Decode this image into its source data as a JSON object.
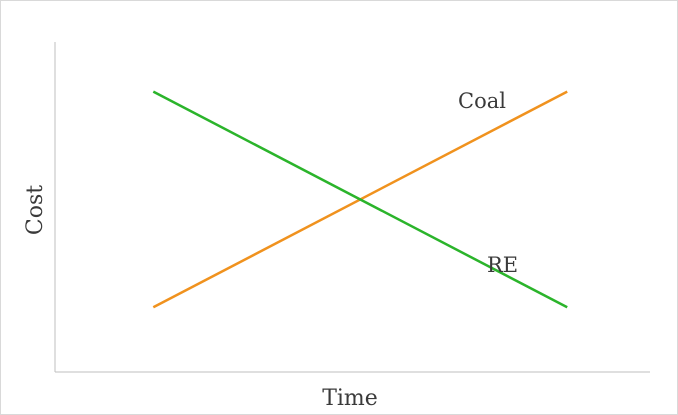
{
  "chart_data": {
    "type": "line",
    "title": "",
    "xlabel": "Time",
    "ylabel": "Cost",
    "x": [
      0,
      1
    ],
    "xlim": [
      -0.2375,
      1.2
    ],
    "ylim": [
      -0.3,
      1.23
    ],
    "grid": false,
    "legend": "none",
    "series": [
      {
        "name": "Coal",
        "color": "#f0921e",
        "values": [
          0,
          1
        ]
      },
      {
        "name": "RE",
        "color": "#2bb42b",
        "values": [
          1,
          0
        ]
      }
    ],
    "annotations": [
      {
        "text": "Coal",
        "series": "Coal"
      },
      {
        "text": "RE",
        "series": "RE"
      }
    ]
  }
}
